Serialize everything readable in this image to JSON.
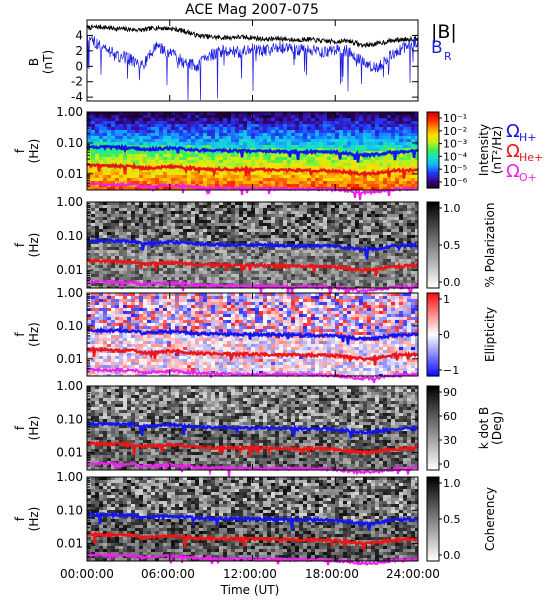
{
  "figure": {
    "title": "ACE Mag 2007-075",
    "x_label": "Time (UT)",
    "x_ticks": [
      "00:00:00",
      "06:00:00",
      "12:00:00",
      "18:00:00",
      "24:00:00"
    ]
  },
  "gyro_legend": {
    "h": "Ω",
    "h_sub": "H+",
    "he": "Ω",
    "he_sub": "He+",
    "o": "Ω",
    "o_sub": "O+"
  },
  "colors": {
    "b_total": "#000000",
    "b_radial": "#1f1fe0",
    "omega_h": "#1515ee",
    "omega_he": "#ee1515",
    "omega_o": "#ee22ee"
  },
  "chart_data": [
    {
      "type": "line",
      "panel": "magnetic-field",
      "ylabel": "B",
      "yunit": "(nT)",
      "ylim": [
        -4.5,
        6
      ],
      "yticks": [
        "4",
        "2",
        "0",
        "-2",
        "-4"
      ],
      "x_range_hours": [
        0,
        24
      ],
      "series": [
        {
          "name": "|B|",
          "x": [
            0,
            1,
            2,
            3,
            4,
            5,
            6,
            7,
            8,
            9,
            10,
            11,
            12,
            13,
            14,
            15,
            16,
            17,
            18,
            19,
            20,
            21,
            22,
            23,
            24
          ],
          "values": [
            5.0,
            5.1,
            4.9,
            4.8,
            4.7,
            5.0,
            4.9,
            4.6,
            4.0,
            3.8,
            3.7,
            3.8,
            3.7,
            3.5,
            3.6,
            3.4,
            3.5,
            3.3,
            3.2,
            3.3,
            2.7,
            2.9,
            3.3,
            3.5,
            3.6
          ]
        },
        {
          "name": "B",
          "name_sub": "R",
          "x": [
            0,
            1,
            2,
            3,
            4,
            5,
            6,
            7,
            8,
            9,
            10,
            11,
            12,
            13,
            14,
            15,
            16,
            17,
            18,
            19,
            20,
            21,
            22,
            23,
            24
          ],
          "values": [
            3.5,
            2.8,
            1.5,
            1.0,
            0.0,
            2.5,
            1.8,
            0.5,
            0.0,
            1.5,
            2.0,
            1.8,
            2.2,
            2.0,
            2.5,
            2.3,
            2.0,
            1.8,
            2.2,
            2.0,
            0.5,
            -0.3,
            1.5,
            2.5,
            3.0
          ]
        }
      ]
    },
    {
      "type": "heatmap",
      "panel": "intensity",
      "ylabel": "f",
      "yunit": "(Hz)",
      "yscale": "log",
      "ylim": [
        0.003,
        1.0
      ],
      "yticks": [
        "1.00",
        "0.10",
        "0.01"
      ],
      "colorbar": {
        "label_line1": "Intensity",
        "label_line2": "(nT²/Hz)",
        "ticks": [
          "10⁻¹",
          "10⁻²",
          "10⁻³",
          "10⁻⁴",
          "10⁻⁵",
          "10⁻⁶"
        ],
        "colormap": [
          "#1a0033",
          "#3a0a9a",
          "#1f3fff",
          "#12b4ff",
          "#18e0c8",
          "#3cf050",
          "#c4f01c",
          "#ffe000",
          "#ff8a00",
          "#ff2a00",
          "#d00000"
        ]
      }
    },
    {
      "type": "heatmap",
      "panel": "polarization",
      "ylabel": "f",
      "yunit": "(Hz)",
      "yscale": "log",
      "ylim": [
        0.003,
        1.0
      ],
      "yticks": [
        "1.00",
        "0.10",
        "0.01"
      ],
      "colorbar": {
        "label": "% Polarization",
        "ticks": [
          "1.0",
          "0.5",
          "0.0"
        ],
        "colormap": [
          "#ffffff",
          "#000000"
        ]
      }
    },
    {
      "type": "heatmap",
      "panel": "ellipticity",
      "ylabel": "f",
      "yunit": "(Hz)",
      "yscale": "log",
      "ylim": [
        0.003,
        1.0
      ],
      "yticks": [
        "1.00",
        "0.10",
        "0.01"
      ],
      "colorbar": {
        "label": "Ellipticity",
        "ticks": [
          "1",
          "0",
          "−1"
        ],
        "colormap": [
          "#1010ff",
          "#ffffff",
          "#ff1010"
        ]
      }
    },
    {
      "type": "heatmap",
      "panel": "k-dot-b",
      "ylabel": "f",
      "yunit": "(Hz)",
      "yscale": "log",
      "ylim": [
        0.003,
        1.0
      ],
      "yticks": [
        "1.00",
        "0.10",
        "0.01"
      ],
      "colorbar": {
        "label_line1": "k dot B",
        "label_line2": "(Deg)",
        "ticks": [
          "90",
          "60",
          "30",
          "0"
        ],
        "colormap": [
          "#ffffff",
          "#000000"
        ]
      }
    },
    {
      "type": "heatmap",
      "panel": "coherency",
      "ylabel": "f",
      "yunit": "(Hz)",
      "yscale": "log",
      "ylim": [
        0.003,
        1.0
      ],
      "yticks": [
        "1.00",
        "0.10",
        "0.01"
      ],
      "colorbar": {
        "label": "Coherency",
        "ticks": [
          "1.0",
          "0.5",
          "0.0"
        ],
        "colormap": [
          "#ffffff",
          "#000000"
        ]
      }
    }
  ],
  "gyrofrequency_lines": {
    "x_hours": [
      0,
      2,
      3.5,
      4,
      6,
      7.5,
      8,
      10,
      12,
      14,
      16,
      18,
      19,
      20,
      21,
      22,
      24
    ],
    "omega_h": [
      0.075,
      0.072,
      0.07,
      0.06,
      0.068,
      0.062,
      0.058,
      0.056,
      0.055,
      0.053,
      0.052,
      0.05,
      0.045,
      0.04,
      0.042,
      0.05,
      0.055
    ],
    "omega_he": [
      0.019,
      0.018,
      0.0175,
      0.015,
      0.017,
      0.0155,
      0.0145,
      0.014,
      0.0138,
      0.0132,
      0.013,
      0.0125,
      0.0112,
      0.01,
      0.0105,
      0.0125,
      0.0138
    ],
    "omega_o": [
      0.0047,
      0.0045,
      0.0044,
      0.0038,
      0.0043,
      0.0039,
      0.0036,
      0.0035,
      0.0034,
      0.0033,
      0.0033,
      0.0031,
      0.0028,
      0.0025,
      0.0026,
      0.0031,
      0.0034
    ]
  }
}
